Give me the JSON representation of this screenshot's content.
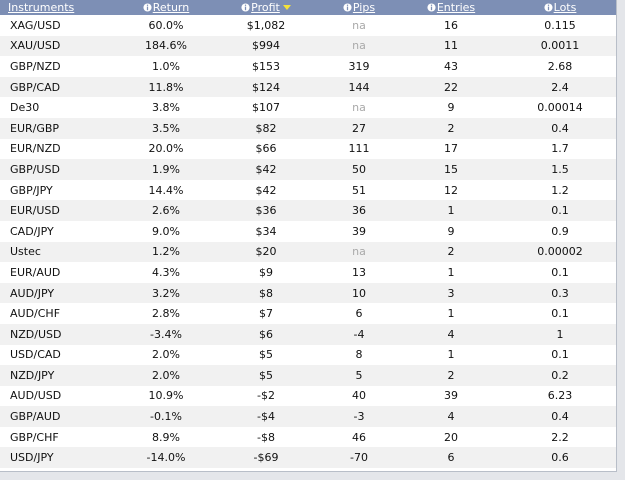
{
  "table": {
    "columns": [
      "Instruments",
      "Return",
      "Profit",
      "Pips",
      "Entries",
      "Lots"
    ],
    "rows": [
      [
        "XAG/USD",
        "60.0%",
        "$1,082",
        "na",
        "16",
        "0.115"
      ],
      [
        "XAU/USD",
        "184.6%",
        "$994",
        "na",
        "11",
        "0.0011"
      ],
      [
        "GBP/NZD",
        "1.0%",
        "$153",
        "319",
        "43",
        "2.68"
      ],
      [
        "GBP/CAD",
        "11.8%",
        "$124",
        "144",
        "22",
        "2.4"
      ],
      [
        "De30",
        "3.8%",
        "$107",
        "na",
        "9",
        "0.00014"
      ],
      [
        "EUR/GBP",
        "3.5%",
        "$82",
        "27",
        "2",
        "0.4"
      ],
      [
        "EUR/NZD",
        "20.0%",
        "$66",
        "111",
        "17",
        "1.7"
      ],
      [
        "GBP/USD",
        "1.9%",
        "$42",
        "50",
        "15",
        "1.5"
      ],
      [
        "GBP/JPY",
        "14.4%",
        "$42",
        "51",
        "12",
        "1.2"
      ],
      [
        "EUR/USD",
        "2.6%",
        "$36",
        "36",
        "1",
        "0.1"
      ],
      [
        "CAD/JPY",
        "9.0%",
        "$34",
        "39",
        "9",
        "0.9"
      ],
      [
        "Ustec",
        "1.2%",
        "$20",
        "na",
        "2",
        "0.00002"
      ],
      [
        "EUR/AUD",
        "4.3%",
        "$9",
        "13",
        "1",
        "0.1"
      ],
      [
        "AUD/JPY",
        "3.2%",
        "$8",
        "10",
        "3",
        "0.3"
      ],
      [
        "AUD/CHF",
        "2.8%",
        "$7",
        "6",
        "1",
        "0.1"
      ],
      [
        "NZD/USD",
        "-3.4%",
        "$6",
        "-4",
        "4",
        "1"
      ],
      [
        "USD/CAD",
        "2.0%",
        "$5",
        "8",
        "1",
        "0.1"
      ],
      [
        "NZD/JPY",
        "2.0%",
        "$5",
        "5",
        "2",
        "0.2"
      ],
      [
        "AUD/USD",
        "10.9%",
        "-$2",
        "40",
        "39",
        "6.23"
      ],
      [
        "GBP/AUD",
        "-0.1%",
        "-$4",
        "-3",
        "4",
        "0.4"
      ],
      [
        "GBP/CHF",
        "8.9%",
        "-$8",
        "46",
        "20",
        "2.2"
      ],
      [
        "USD/JPY",
        "-14.0%",
        "-$69",
        "-70",
        "6",
        "0.6"
      ]
    ]
  }
}
